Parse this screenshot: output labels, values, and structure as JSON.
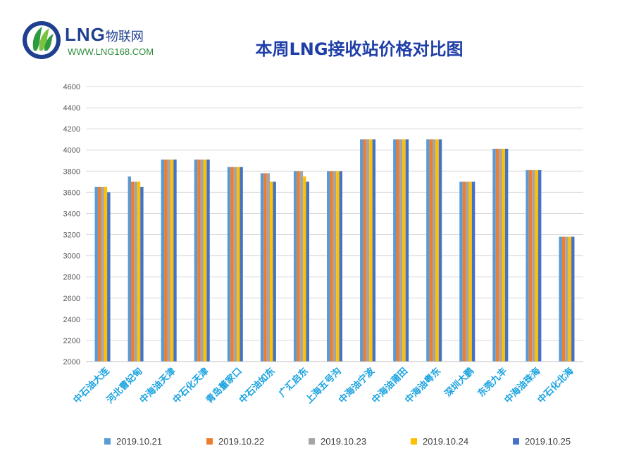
{
  "logo": {
    "brand": "LNG",
    "brand_cn": "物联网",
    "url": "WWW.LNG168.COM",
    "icon": "lng-leaf-logo-icon"
  },
  "chart_data": {
    "type": "bar",
    "title": "本周LNG接收站价格对比图",
    "xlabel": "",
    "ylabel": "",
    "ylim": [
      2000,
      4600
    ],
    "yticks": [
      2000,
      2200,
      2400,
      2600,
      2800,
      3000,
      3200,
      3400,
      3600,
      3800,
      4000,
      4200,
      4400,
      4600
    ],
    "grid": true,
    "legend_position": "bottom",
    "categories": [
      "中石油大连",
      "河北曹妃甸",
      "中海油天津",
      "中石化天津",
      "青岛董家口",
      "中石油如东",
      "广汇启东",
      "上海五号沟",
      "中海油宁波",
      "中海油莆田",
      "中海油粤东",
      "深圳大鹏",
      "东莞九丰",
      "中海油珠海",
      "中石化北海"
    ],
    "series": [
      {
        "name": "2019.10.21",
        "color": "#5b9bd5",
        "values": [
          3650,
          3750,
          3910,
          3910,
          3840,
          3780,
          3800,
          3800,
          4100,
          4100,
          4100,
          3700,
          4010,
          3810,
          3180
        ]
      },
      {
        "name": "2019.10.22",
        "color": "#ed7d31",
        "values": [
          3650,
          3700,
          3910,
          3910,
          3840,
          3780,
          3800,
          3800,
          4100,
          4100,
          4100,
          3700,
          4010,
          3810,
          3180
        ]
      },
      {
        "name": "2019.10.23",
        "color": "#a5a5a5",
        "values": [
          3650,
          3700,
          3910,
          3910,
          3840,
          3780,
          3800,
          3800,
          4100,
          4100,
          4100,
          3700,
          4010,
          3810,
          3180
        ]
      },
      {
        "name": "2019.10.24",
        "color": "#ffc000",
        "values": [
          3650,
          3700,
          3910,
          3910,
          3840,
          3700,
          3750,
          3800,
          4100,
          4100,
          4100,
          3700,
          4010,
          3810,
          3180
        ]
      },
      {
        "name": "2019.10.25",
        "color": "#4472c4",
        "values": [
          3600,
          3650,
          3910,
          3910,
          3840,
          3700,
          3700,
          3800,
          4100,
          4100,
          4100,
          3700,
          4010,
          3810,
          3180
        ]
      }
    ],
    "category_label_color": "#1aa3e0"
  }
}
